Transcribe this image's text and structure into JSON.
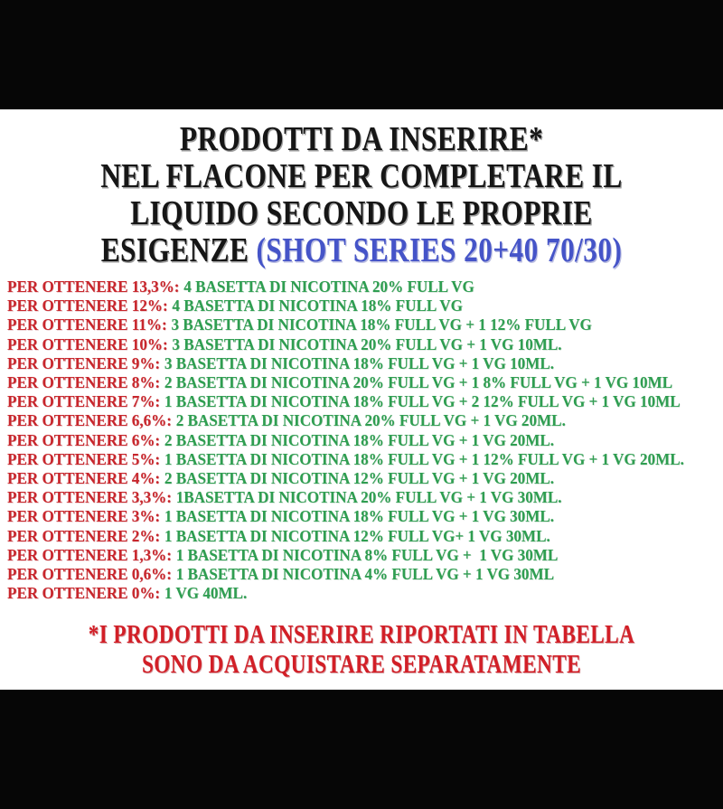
{
  "page": {
    "background_color": "#ffffff",
    "top_bar_color": "#060606",
    "bottom_bar_color": "#060606"
  },
  "title": {
    "text_color": "#161616",
    "accent_color": "#4554c8",
    "lines": [
      "PRODOTTI DA INSERIRE*",
      "NEL FLACONE PER COMPLETARE IL",
      "LIQUIDO SECONDO LE PROPRIE"
    ],
    "last_line_black": "ESIGENZE",
    "last_line_blue": "(SHOT SERIES 20+40 70/30)"
  },
  "list": {
    "label_color": "#c8262c",
    "value_color": "#2f9e51",
    "items": [
      {
        "label": "PER OTTENERE 13,3%:",
        "value": "4 BASETTA DI NICOTINA 20% FULL VG"
      },
      {
        "label": "PER OTTENERE 12%:",
        "value": "4 BASETTA DI NICOTINA 18% FULL VG"
      },
      {
        "label": "PER OTTENERE 11%:",
        "value": "3 BASETTA DI NICOTINA 18% FULL VG + 1 12% FULL VG"
      },
      {
        "label": "PER OTTENERE 10%:",
        "value": "3 BASETTA DI NICOTINA 20% FULL VG + 1 VG 10ML."
      },
      {
        "label": "PER OTTENERE 9%:",
        "value": "3 BASETTA DI NICOTINA 18% FULL VG + 1 VG 10ML."
      },
      {
        "label": "PER OTTENERE 8%:",
        "value": "2 BASETTA DI NICOTINA 20% FULL VG + 1 8% FULL VG + 1 VG 10ML"
      },
      {
        "label": "PER OTTENERE 7%:",
        "value": "1 BASETTA DI NICOTINA 18% FULL VG + 2 12% FULL VG + 1 VG 10ML"
      },
      {
        "label": "PER OTTENERE 6,6%:",
        "value": "2 BASETTA DI NICOTINA 20% FULL VG + 1 VG 20ML."
      },
      {
        "label": "PER OTTENERE 6%:",
        "value": "2 BASETTA DI NICOTINA 18% FULL VG + 1 VG 20ML."
      },
      {
        "label": "PER OTTENERE 5%:",
        "value": "1 BASETTA DI NICOTINA 18% FULL VG + 1 12% FULL VG + 1 VG 20ML."
      },
      {
        "label": "PER OTTENERE 4%:",
        "value": "2 BASETTA DI NICOTINA 12% FULL VG + 1 VG 20ML."
      },
      {
        "label": "PER OTTENERE 3,3%:",
        "value": "1BASETTA DI NICOTINA 20% FULL VG + 1 VG 30ML."
      },
      {
        "label": "PER OTTENERE 3%:",
        "value": "1 BASETTA DI NICOTINA 18% FULL VG + 1 VG 30ML."
      },
      {
        "label": "PER OTTENERE 2%:",
        "value": "1 BASETTA DI NICOTINA 12% FULL VG+ 1 VG 30ML."
      },
      {
        "label": "PER OTTENERE 1,3%:",
        "value": "1 BASETTA DI NICOTINA 8% FULL VG +  1 VG 30ML"
      },
      {
        "label": "PER OTTENERE 0,6%:",
        "value": "1 BASETTA DI NICOTINA 4% FULL VG + 1 VG 30ML"
      },
      {
        "label": "PER OTTENERE 0%:",
        "value": "1 VG 40ML."
      }
    ]
  },
  "footer": {
    "color": "#d21f27",
    "lines": [
      "*I PRODOTTI DA INSERIRE RIPORTATI IN TABELLA",
      "SONO DA ACQUISTARE SEPARATAMENTE"
    ]
  }
}
